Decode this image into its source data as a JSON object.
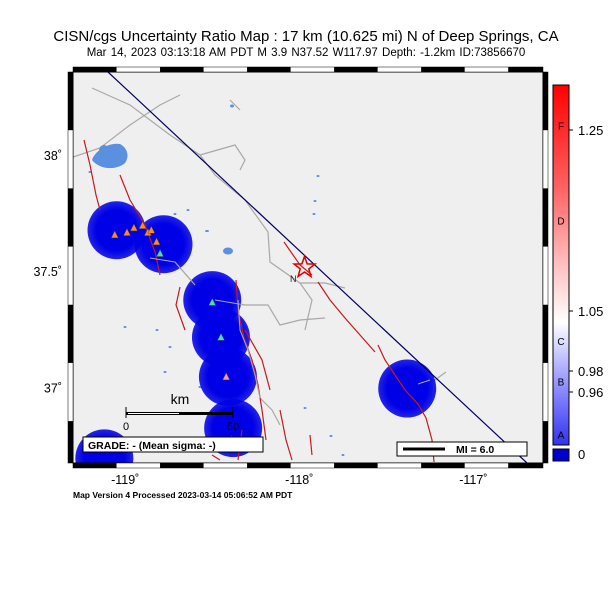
{
  "header": {
    "title": "CISN/cgs Uncertainty Ratio Map : 17 km (10.625 mi) N of Deep Springs, CA",
    "subtitle": "Mar 14, 2023 03:13:18 AM PDT   M 3.9   N37.52 W117.97   Depth: -1.2km   ID:73856670"
  },
  "map": {
    "lat_ticks": [
      {
        "value": 38.0,
        "label": "38˚"
      },
      {
        "value": 37.5,
        "label": "37.5˚"
      },
      {
        "value": 37.0,
        "label": "37˚"
      }
    ],
    "lon_ticks": [
      {
        "value": -119.0,
        "label": "-119˚"
      },
      {
        "value": -118.0,
        "label": "-118˚"
      },
      {
        "value": -117.0,
        "label": "-117˚"
      }
    ],
    "extent": {
      "lon_min": -119.3,
      "lon_max": -116.6,
      "lat_min": 36.68,
      "lat_max": 38.36
    },
    "epicenter": {
      "lat": 37.52,
      "lon": -117.97
    },
    "colors": {
      "land": "#efefef",
      "water": "#5b8fe0",
      "fault": "#c41a1a",
      "road": "#a8a8a8",
      "border": "#000066",
      "uncertainty": "#0000e6"
    },
    "uncertainty_blobs": [
      {
        "lat": 37.68,
        "lon": -119.05
      },
      {
        "lat": 37.62,
        "lon": -118.78
      },
      {
        "lat": 37.38,
        "lon": -118.5
      },
      {
        "lat": 37.22,
        "lon": -118.45
      },
      {
        "lat": 37.05,
        "lon": -118.41
      },
      {
        "lat": 36.83,
        "lon": -118.38
      },
      {
        "lat": 37.0,
        "lon": -117.38
      },
      {
        "lat": 36.7,
        "lon": -119.12
      }
    ],
    "stations": [
      {
        "lat": 37.66,
        "lon": -119.06,
        "color": "#ff8c1a"
      },
      {
        "lat": 37.67,
        "lon": -118.99,
        "color": "#ff8c1a"
      },
      {
        "lat": 37.69,
        "lon": -118.95,
        "color": "#ff8c1a"
      },
      {
        "lat": 37.7,
        "lon": -118.9,
        "color": "#ff8c1a"
      },
      {
        "lat": 37.67,
        "lon": -118.87,
        "color": "#ff8c1a"
      },
      {
        "lat": 37.63,
        "lon": -118.82,
        "color": "#ff8c1a"
      },
      {
        "lat": 37.68,
        "lon": -118.85,
        "color": "#ff8c1a"
      },
      {
        "lat": 37.58,
        "lon": -118.8,
        "color": "#44e0b8"
      },
      {
        "lat": 37.37,
        "lon": -118.5,
        "color": "#44e0b8"
      },
      {
        "lat": 37.22,
        "lon": -118.45,
        "color": "#44e0b8"
      },
      {
        "lat": 37.05,
        "lon": -118.42,
        "color": "#ff9999"
      },
      {
        "lat": 36.78,
        "lon": -118.39,
        "color": "#44e0b8"
      }
    ],
    "map_label_n": "N",
    "scale": {
      "title": "km",
      "tick0": "0",
      "tick1": "50"
    },
    "grade": "GRADE: - (Mean sigma: -)",
    "mi_legend": "MI = 6.0"
  },
  "colorbar": {
    "scale_min": 0,
    "scale_max": 1.3,
    "value_labels": [
      {
        "value": 1.25,
        "label": "1.25"
      },
      {
        "value": 1.05,
        "label": "1.05"
      },
      {
        "value": 0.98,
        "label": "0.98"
      },
      {
        "value": 0.96,
        "label": "0.96"
      }
    ],
    "zero_label": "0",
    "grade_letters": [
      {
        "value": 1.255,
        "letter": "F"
      },
      {
        "value": 1.15,
        "letter": "D"
      },
      {
        "value": 1.015,
        "letter": "C"
      },
      {
        "value": 0.97,
        "letter": "B"
      },
      {
        "value": 0.88,
        "letter": "A"
      }
    ]
  },
  "footer": {
    "processed": "Map Version 4 Processed 2023-03-14 05:06:52 AM PDT"
  }
}
